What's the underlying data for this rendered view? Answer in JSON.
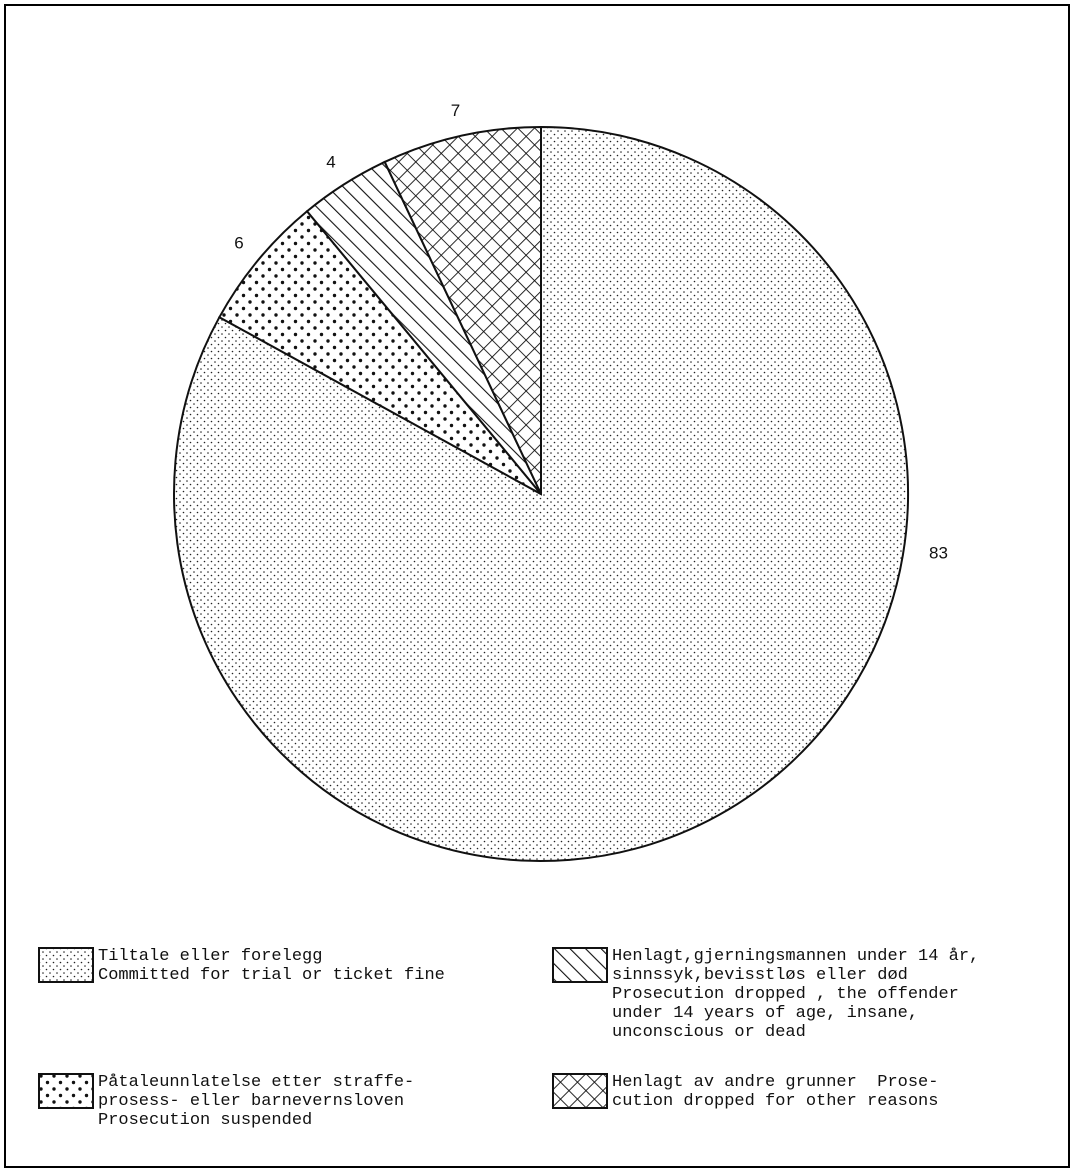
{
  "chart_data": {
    "type": "pie",
    "slices": [
      {
        "key": "trial",
        "value": 83,
        "label": "83",
        "pattern": "fine-dots"
      },
      {
        "key": "suspended",
        "value": 6,
        "label": "6",
        "pattern": "coarse-dots"
      },
      {
        "key": "dropped_minor",
        "value": 4,
        "label": "4",
        "pattern": "diagonal-lines"
      },
      {
        "key": "dropped_other",
        "value": 7,
        "label": "7",
        "pattern": "cross-hatch"
      }
    ],
    "start": "12 o'clock",
    "direction": "clockwise"
  },
  "legend": {
    "items": [
      {
        "key": "trial",
        "pattern": "fine-dots",
        "lines": [
          "Tiltale eller forelegg",
          "Committed for trial or ticket fine"
        ]
      },
      {
        "key": "dropped_minor",
        "pattern": "diagonal-lines",
        "lines": [
          "Henlagt,gjerningsmannen under 14 år,",
          "sinnssyk,bevisstløs eller død",
          "Prosecution dropped , the offender",
          "under 14 years of age, insane,",
          "unconscious or dead"
        ]
      },
      {
        "key": "suspended",
        "pattern": "coarse-dots",
        "lines": [
          "Påtaleunnlatelse etter straffe-",
          "prosess- eller barnevernsloven",
          "Prosecution suspended"
        ]
      },
      {
        "key": "dropped_other",
        "pattern": "cross-hatch",
        "lines": [
          "Henlagt av andre grunner  Prose-",
          "cution dropped for other reasons"
        ]
      }
    ]
  },
  "colors": {
    "ink": "#111111",
    "paper": "#ffffff"
  }
}
